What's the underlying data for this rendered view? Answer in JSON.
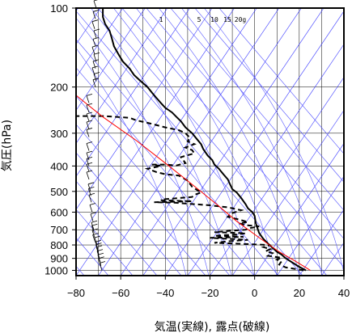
{
  "chart_data": {
    "type": "line",
    "title": "",
    "xlabel": "気温(実線), 露点(破線)",
    "ylabel": "気圧(hPa)",
    "xlim": [
      -80,
      40
    ],
    "ylim": [
      1030,
      100
    ],
    "y_scale": "log",
    "grid": true,
    "x_ticks": [
      "−80",
      "−60",
      "−40",
      "−20",
      "0",
      "20",
      "40"
    ],
    "x_tick_values": [
      -80,
      -60,
      -40,
      -20,
      0,
      20,
      40
    ],
    "y_ticks": [
      "100",
      "200",
      "300",
      "400",
      "500",
      "600",
      "700",
      "800",
      "900",
      "1000"
    ],
    "y_tick_values": [
      100,
      200,
      300,
      400,
      500,
      600,
      700,
      800,
      900,
      1000
    ],
    "mixing_ratio_labels": [
      "1",
      "5",
      "10",
      "15",
      "20g"
    ],
    "mixing_ratio_values": [
      1,
      5,
      10,
      15,
      20
    ],
    "series": [
      {
        "style": "solid",
        "color": "#000000",
        "points": [
          [
            23,
            1000
          ],
          [
            20,
            970
          ],
          [
            17,
            935
          ],
          [
            14,
            900
          ],
          [
            12,
            870
          ],
          [
            10,
            850
          ],
          [
            8,
            820
          ],
          [
            6,
            790
          ],
          [
            4,
            760
          ],
          [
            3,
            740
          ],
          [
            2,
            720
          ],
          [
            1.5,
            700
          ],
          [
            1,
            680
          ],
          [
            0.5,
            660
          ],
          [
            0,
            620
          ],
          [
            -1,
            600
          ],
          [
            -3,
            580
          ],
          [
            -4,
            560
          ],
          [
            -6,
            530
          ],
          [
            -8,
            505
          ],
          [
            -10,
            490
          ],
          [
            -11,
            470
          ],
          [
            -12,
            450
          ],
          [
            -14,
            430
          ],
          [
            -16,
            410
          ],
          [
            -18,
            395
          ],
          [
            -19,
            380
          ],
          [
            -21,
            365
          ],
          [
            -23,
            345
          ],
          [
            -24,
            330
          ],
          [
            -26,
            315
          ],
          [
            -28,
            300
          ],
          [
            -31,
            285
          ],
          [
            -33,
            270
          ],
          [
            -35,
            260
          ],
          [
            -37,
            250
          ],
          [
            -40,
            240
          ],
          [
            -42,
            230
          ],
          [
            -44,
            220
          ],
          [
            -46,
            210
          ],
          [
            -48,
            200
          ],
          [
            -51,
            190
          ],
          [
            -54,
            180
          ],
          [
            -56,
            170
          ],
          [
            -59,
            160
          ],
          [
            -61,
            150
          ],
          [
            -63,
            140
          ],
          [
            -64,
            130
          ],
          [
            -65,
            122
          ],
          [
            -67,
            115
          ],
          [
            -68,
            108
          ],
          [
            -68,
            100
          ]
        ]
      },
      {
        "style": "dashed",
        "color": "#000000",
        "points": [
          [
            22,
            1000
          ],
          [
            14,
            975
          ],
          [
            11,
            950
          ],
          [
            12,
            925
          ],
          [
            10,
            910
          ],
          [
            12,
            895
          ],
          [
            6,
            880
          ],
          [
            8,
            860
          ],
          [
            5,
            845
          ],
          [
            7,
            830
          ],
          [
            4,
            815
          ],
          [
            7,
            800
          ],
          [
            -18,
            785
          ],
          [
            -12,
            775
          ],
          [
            -3,
            765
          ],
          [
            -12,
            758
          ],
          [
            -20,
            752
          ],
          [
            -5,
            745
          ],
          [
            -18,
            738
          ],
          [
            -8,
            730
          ],
          [
            -4,
            722
          ],
          [
            -18,
            715
          ],
          [
            -12,
            708
          ],
          [
            -4,
            700
          ],
          [
            -2,
            690
          ],
          [
            2,
            680
          ],
          [
            -4,
            672
          ],
          [
            -7,
            662
          ],
          [
            -3,
            654
          ],
          [
            -7,
            640
          ],
          [
            -12,
            625
          ],
          [
            -10,
            605
          ],
          [
            -6,
            590
          ],
          [
            -12,
            575
          ],
          [
            -20,
            565
          ],
          [
            -26,
            560
          ],
          [
            -36,
            552
          ],
          [
            -45,
            550
          ],
          [
            -28,
            545
          ],
          [
            -42,
            540
          ],
          [
            -40,
            535
          ],
          [
            -28,
            525
          ],
          [
            -27,
            515
          ],
          [
            -24,
            505
          ],
          [
            -28,
            480
          ],
          [
            -30,
            455
          ],
          [
            -34,
            435
          ],
          [
            -40,
            430
          ],
          [
            -44,
            422
          ],
          [
            -48,
            410
          ],
          [
            -42,
            400
          ],
          [
            -46,
            395
          ],
          [
            -40,
            395
          ],
          [
            -35,
            398
          ],
          [
            -31,
            390
          ],
          [
            -33,
            370
          ],
          [
            -27,
            358
          ],
          [
            -28,
            348
          ],
          [
            -31,
            340
          ],
          [
            -27,
            330
          ],
          [
            -30,
            322
          ],
          [
            -29,
            312
          ],
          [
            -31,
            300
          ],
          [
            -34,
            292
          ],
          [
            -40,
            285
          ],
          [
            -47,
            275
          ],
          [
            -53,
            268
          ],
          [
            -56,
            262
          ],
          [
            -68,
            258
          ],
          [
            -78,
            258
          ],
          [
            -85,
            258
          ]
        ]
      },
      {
        "style": "solid",
        "color": "#ff0000",
        "label": "",
        "points": [
          [
            25,
            1000
          ],
          [
            18,
            920
          ],
          [
            11,
            850
          ],
          [
            2,
            750
          ],
          [
            -8,
            650
          ],
          [
            -17,
            560
          ],
          [
            -28,
            470
          ],
          [
            -40,
            390
          ],
          [
            -53,
            320
          ],
          [
            -68,
            260
          ],
          [
            -83,
            205
          ],
          [
            -98,
            165
          ]
        ]
      }
    ]
  }
}
